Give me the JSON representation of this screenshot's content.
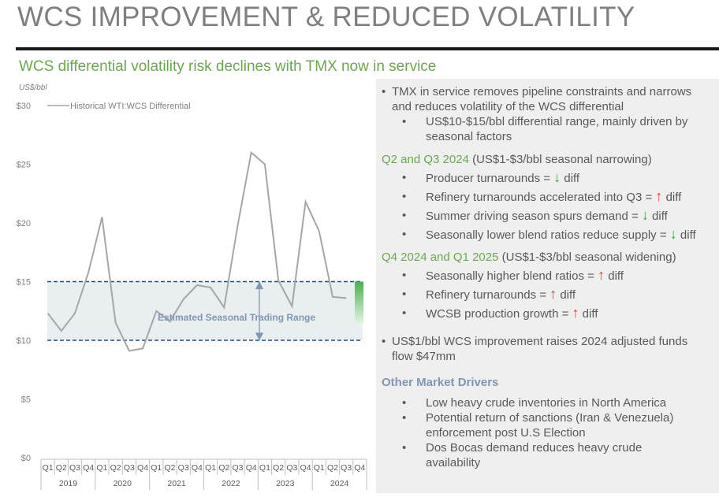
{
  "page": {
    "title": "WCS IMPROVEMENT & REDUCED VOLATILITY",
    "subtitle": "WCS differential volatility risk declines with TMX now in service"
  },
  "colors": {
    "accent_green": "#6aa84f",
    "band_line": "#1f4e79",
    "series": "#a6a6a6",
    "up_arrow": "#e53935",
    "down_arrow": "#3aa53a",
    "heading_blue": "#7f97b3"
  },
  "chart_data": {
    "type": "line",
    "unit_label": "US$/bbl",
    "ylim": [
      0,
      30
    ],
    "yticks": [
      "$0",
      "$5",
      "$10",
      "$15",
      "$20",
      "$25",
      "$30"
    ],
    "ytick_values": [
      0,
      5,
      10,
      15,
      20,
      25,
      30
    ],
    "quarters": [
      "Q1",
      "Q2",
      "Q3",
      "Q4",
      "Q1",
      "Q2",
      "Q3",
      "Q4",
      "Q1",
      "Q2",
      "Q3",
      "Q4",
      "Q1",
      "Q2",
      "Q3",
      "Q4",
      "Q1",
      "Q2",
      "Q3",
      "Q4",
      "Q1",
      "Q2",
      "Q3",
      "Q4"
    ],
    "years": [
      "2019",
      "2020",
      "2021",
      "2022",
      "2023",
      "2024"
    ],
    "series": [
      {
        "name": "Historical WTI:WCS Differential",
        "values": [
          12.3,
          10.8,
          12.3,
          15.8,
          20.5,
          11.5,
          9.1,
          9.3,
          12.5,
          11.6,
          13.5,
          14.7,
          14.5,
          12.8,
          19.8,
          26.0,
          25.0,
          15.1,
          12.9,
          21.8,
          19.3,
          13.7,
          13.6,
          null
        ]
      }
    ],
    "trading_range": {
      "low": 10,
      "high": 15,
      "label": "Estimated Seasonal Trading Range"
    },
    "grid": false,
    "legend_position": "top-left"
  },
  "panel": {
    "bullet1": [
      "TMX in service removes pipeline constraints and narrows",
      "and reduces volatility of the WCS differential"
    ],
    "bullet1_sub": [
      "US$10-$15/bbl differential range, mainly driven by",
      "seasonal factors"
    ],
    "h1_green": "Q2 and Q3 2024",
    "h1_rest": " (US$1-$3/bbl seasonal narrowing)",
    "h1_items": [
      {
        "text": "Producer turnarounds = ",
        "arrow": "↓",
        "dir": "down",
        "tail": " diff"
      },
      {
        "text": "Refinery turnarounds accelerated into Q3 = ",
        "arrow": "↑",
        "dir": "up",
        "tail": " diff"
      },
      {
        "text": "Summer driving season spurs demand = ",
        "arrow": "↓",
        "dir": "down",
        "tail": " diff"
      },
      {
        "text": "Seasonally lower blend ratios reduce supply = ",
        "arrow": "↓",
        "dir": "down",
        "tail": " diff"
      }
    ],
    "h2_green": "Q4 2024 and Q1 2025",
    "h2_rest": " (US$1-$3/bbl seasonal widening)",
    "h2_items": [
      {
        "text": "Seasonally higher blend ratios = ",
        "arrow": "↑",
        "dir": "up",
        "tail": " diff"
      },
      {
        "text": "Refinery turnarounds = ",
        "arrow": "↑",
        "dir": "up",
        "tail": " diff"
      },
      {
        "text": "WCSB production growth = ",
        "arrow": "↑",
        "dir": "up",
        "tail": " diff"
      }
    ],
    "bullet2": [
      "US$1/bbl WCS improvement raises 2024 adjusted funds",
      "flow $47mm"
    ],
    "h3": "Other Market Drivers",
    "h3_items": [
      [
        "Low heavy crude inventories in North America"
      ],
      [
        "Potential return of sanctions (Iran & Venezuela)",
        "enforcement post U.S Election"
      ],
      [
        "Dos Bocas demand reduces heavy crude",
        "availability"
      ]
    ],
    "bullet_char": "•",
    "sub_bullet_char": "•"
  }
}
